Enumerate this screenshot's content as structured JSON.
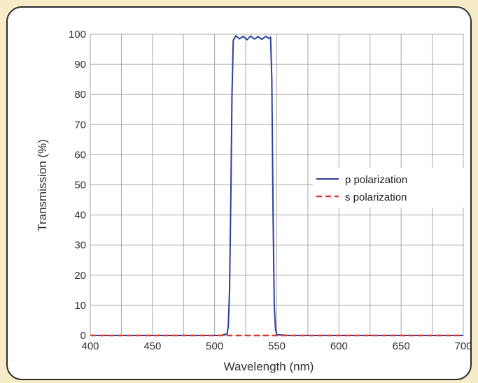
{
  "chart_data": {
    "type": "line",
    "title": "",
    "xlabel": "Wavelength (nm)",
    "ylabel": "Transmission (%)",
    "xlim": [
      400,
      700
    ],
    "ylim": [
      0,
      100
    ],
    "xticks": [
      400,
      450,
      500,
      550,
      600,
      650,
      700
    ],
    "yticks": [
      0,
      10,
      20,
      30,
      40,
      50,
      60,
      70,
      80,
      90,
      100
    ],
    "x_minor_step": 25,
    "grid": true,
    "legend_position": "center-right",
    "series": [
      {
        "name": "p polarization",
        "color": "#2a3f9d",
        "style": "solid",
        "x": [
          400,
          505,
          510,
          511,
          512,
          513,
          514,
          515,
          517,
          520,
          523,
          526,
          529,
          532,
          535,
          538,
          541,
          544,
          545,
          546,
          547,
          548,
          549,
          550,
          560,
          700
        ],
        "y": [
          0,
          0,
          0.5,
          3,
          15,
          45,
          80,
          98,
          99.5,
          98.5,
          99.3,
          98.2,
          99.4,
          98.4,
          99.2,
          98.3,
          99.3,
          98.6,
          99,
          85,
          40,
          10,
          2,
          0.3,
          0,
          0
        ]
      },
      {
        "name": "s polarization",
        "color": "#d93a2b",
        "style": "dashed",
        "x": [
          400,
          700
        ],
        "y": [
          0,
          0
        ]
      }
    ]
  }
}
